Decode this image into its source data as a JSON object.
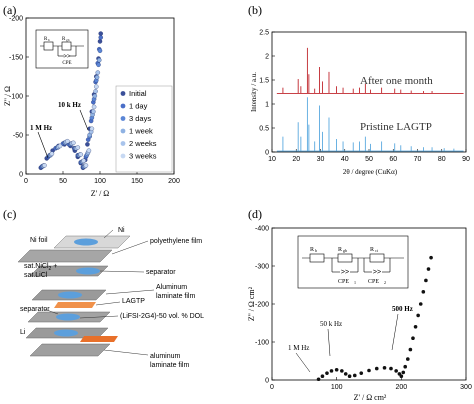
{
  "panel_labels": {
    "a": "(a)",
    "b": "(b)",
    "c": "(c)",
    "d": "(d)"
  },
  "chart_data": [
    {
      "panel": "a",
      "type": "scatter",
      "xlabel": "Z' / Ω",
      "ylabel": "Z'' / Ω",
      "xlim": [
        0,
        200
      ],
      "ylim": [
        -200,
        0
      ],
      "xticks": [
        "0",
        "50",
        "100",
        "150",
        "200"
      ],
      "yticks": [
        "-200",
        "-150",
        "-100",
        "-50",
        "0"
      ],
      "annotations": [
        "1 M Hz",
        "10 k Hz"
      ],
      "inset_circuit": {
        "labels": [
          "R",
          "b",
          "R",
          "gb",
          "CPE"
        ]
      },
      "legend_placement": "bottom-right",
      "colors": [
        "#3a4f99",
        "#4a6fc8",
        "#5b86d6",
        "#8fb2e3",
        "#a8c4ec",
        "#c7d9f3"
      ],
      "series": [
        {
          "name": "Initial",
          "points": [
            [
              20,
              -8
            ],
            [
              28,
              -20
            ],
            [
              36,
              -30
            ],
            [
              44,
              -36
            ],
            [
              52,
              -38
            ],
            [
              60,
              -36
            ],
            [
              66,
              -30
            ],
            [
              70,
              -22
            ],
            [
              74,
              -14
            ],
            [
              77,
              -8
            ],
            [
              80,
              -18
            ],
            [
              83,
              -38
            ],
            [
              86,
              -58
            ],
            [
              89,
              -80
            ],
            [
              92,
              -102
            ],
            [
              95,
              -125
            ],
            [
              98,
              -148
            ],
            [
              100,
              -170
            ],
            [
              101,
              -180
            ]
          ]
        },
        {
          "name": "1 day",
          "points": [
            [
              21,
              -9
            ],
            [
              30,
              -22
            ],
            [
              40,
              -33
            ],
            [
              50,
              -39
            ],
            [
              58,
              -38
            ],
            [
              65,
              -33
            ],
            [
              70,
              -24
            ],
            [
              74,
              -15
            ],
            [
              77,
              -9
            ],
            [
              81,
              -22
            ],
            [
              84,
              -44
            ],
            [
              88,
              -68
            ],
            [
              91,
              -92
            ],
            [
              94,
              -118
            ],
            [
              97,
              -142
            ],
            [
              99,
              -160
            ],
            [
              101,
              -175
            ]
          ]
        },
        {
          "name": "3 days",
          "points": [
            [
              22,
              -10
            ],
            [
              32,
              -24
            ],
            [
              42,
              -34
            ],
            [
              52,
              -40
            ],
            [
              60,
              -38
            ],
            [
              66,
              -33
            ],
            [
              71,
              -24
            ],
            [
              75,
              -15
            ],
            [
              78,
              -9
            ],
            [
              82,
              -24
            ],
            [
              86,
              -48
            ],
            [
              89,
              -72
            ],
            [
              92,
              -96
            ],
            [
              95,
              -120
            ],
            [
              98,
              -140
            ],
            [
              100,
              -158
            ]
          ]
        },
        {
          "name": "1 week",
          "points": [
            [
              23,
              -10
            ],
            [
              33,
              -24
            ],
            [
              43,
              -34
            ],
            [
              53,
              -40
            ],
            [
              61,
              -39
            ],
            [
              67,
              -33
            ],
            [
              72,
              -24
            ],
            [
              76,
              -16
            ],
            [
              79,
              -10
            ],
            [
              83,
              -26
            ],
            [
              86,
              -50
            ],
            [
              90,
              -76
            ],
            [
              93,
              -100
            ],
            [
              96,
              -124
            ],
            [
              99,
              -146
            ]
          ]
        },
        {
          "name": "2 weeks",
          "points": [
            [
              24,
              -11
            ],
            [
              34,
              -25
            ],
            [
              44,
              -35
            ],
            [
              54,
              -41
            ],
            [
              62,
              -39
            ],
            [
              68,
              -33
            ],
            [
              73,
              -25
            ],
            [
              77,
              -16
            ],
            [
              80,
              -10
            ],
            [
              84,
              -28
            ],
            [
              88,
              -54
            ],
            [
              91,
              -80
            ],
            [
              94,
              -106
            ],
            [
              97,
              -130
            ]
          ]
        },
        {
          "name": "3 weeks",
          "points": [
            [
              25,
              -11
            ],
            [
              35,
              -26
            ],
            [
              46,
              -36
            ],
            [
              56,
              -42
            ],
            [
              64,
              -40
            ],
            [
              70,
              -34
            ],
            [
              74,
              -25
            ],
            [
              78,
              -17
            ],
            [
              81,
              -11
            ],
            [
              85,
              -30
            ],
            [
              89,
              -58
            ],
            [
              92,
              -86
            ],
            [
              95,
              -112
            ]
          ]
        }
      ]
    },
    {
      "panel": "b",
      "type": "line",
      "xlabel": "2θ / degree (CuKα)",
      "ylabel": "Intensity / a.u.",
      "xlim": [
        10,
        90
      ],
      "ylim": [
        0,
        2.5
      ],
      "xticks": [
        "10",
        "20",
        "30",
        "40",
        "50",
        "60",
        "70",
        "80",
        "90"
      ],
      "yticks": [
        "0",
        "0.5",
        "1",
        "1.5",
        "2",
        "2.5"
      ],
      "series": [
        {
          "name": "After one month",
          "color": "#c0262d",
          "baseline": 1.22,
          "peaks": [
            [
              14.5,
              0.12
            ],
            [
              20.8,
              0.3
            ],
            [
              21.9,
              0.15
            ],
            [
              24.6,
              0.95
            ],
            [
              25.2,
              0.4
            ],
            [
              27.6,
              0.1
            ],
            [
              29.6,
              0.55
            ],
            [
              30.8,
              0.25
            ],
            [
              33.5,
              0.45
            ],
            [
              36.6,
              0.15
            ],
            [
              39.3,
              0.12
            ],
            [
              43.5,
              0.1
            ],
            [
              46.1,
              0.12
            ],
            [
              48.5,
              0.2
            ],
            [
              50.6,
              0.08
            ],
            [
              55.2,
              0.12
            ],
            [
              60.6,
              0.1
            ],
            [
              63.1,
              0.08
            ],
            [
              67.4,
              0.06
            ],
            [
              72.5,
              0.05
            ],
            [
              76.0,
              0.05
            ]
          ]
        },
        {
          "name": "Pristine LAGTP",
          "color": "#5aa9df",
          "baseline": 0.02,
          "peaks": [
            [
              14.5,
              0.3
            ],
            [
              20.8,
              0.6
            ],
            [
              21.9,
              0.3
            ],
            [
              24.6,
              1.12
            ],
            [
              25.2,
              0.55
            ],
            [
              27.6,
              0.2
            ],
            [
              29.6,
              0.95
            ],
            [
              30.8,
              0.4
            ],
            [
              33.5,
              0.7
            ],
            [
              36.6,
              0.25
            ],
            [
              39.3,
              0.2
            ],
            [
              43.5,
              0.18
            ],
            [
              46.1,
              0.2
            ],
            [
              48.5,
              0.3
            ],
            [
              50.6,
              0.15
            ],
            [
              55.2,
              0.2
            ],
            [
              60.6,
              0.16
            ],
            [
              63.1,
              0.12
            ],
            [
              67.4,
              0.1
            ],
            [
              72.5,
              0.08
            ],
            [
              76.0,
              0.08
            ],
            [
              81.0,
              0.06
            ],
            [
              85.0,
              0.05
            ]
          ]
        }
      ]
    },
    {
      "panel": "d",
      "type": "scatter",
      "xlabel": "Z' / Ω cm²",
      "ylabel": "Z'' / Ω cm²",
      "xlim": [
        0,
        300
      ],
      "ylim": [
        -400,
        0
      ],
      "xticks": [
        "0",
        "100",
        "200",
        "300"
      ],
      "yticks": [
        "-400",
        "-300",
        "-200",
        "-100",
        "0"
      ],
      "annotations": [
        "1 M Hz",
        "50 k Hz",
        "500 Hz"
      ],
      "inset_circuit": {
        "labels": [
          "R",
          "b",
          "R",
          "gb",
          "R",
          "ct",
          "CPE",
          "1",
          "CPE",
          "2"
        ]
      },
      "series": [
        {
          "name": "",
          "color": "#111111",
          "points": [
            [
              72,
              -2
            ],
            [
              78,
              -10
            ],
            [
              85,
              -18
            ],
            [
              92,
              -24
            ],
            [
              100,
              -27
            ],
            [
              108,
              -24
            ],
            [
              114,
              -16
            ],
            [
              120,
              -10
            ],
            [
              128,
              -12
            ],
            [
              138,
              -18
            ],
            [
              150,
              -25
            ],
            [
              162,
              -30
            ],
            [
              174,
              -32
            ],
            [
              184,
              -30
            ],
            [
              192,
              -24
            ],
            [
              197,
              -16
            ],
            [
              200,
              -10
            ],
            [
              203,
              -20
            ],
            [
              206,
              -35
            ],
            [
              210,
              -55
            ],
            [
              214,
              -80
            ],
            [
              218,
              -110
            ],
            [
              222,
              -140
            ],
            [
              226,
              -170
            ],
            [
              230,
              -200
            ],
            [
              234,
              -232
            ],
            [
              238,
              -262
            ],
            [
              242,
              -292
            ],
            [
              246,
              -322
            ]
          ]
        }
      ]
    }
  ],
  "schematic": {
    "labels": {
      "ni_foil": "Ni foil",
      "ni": "Ni",
      "polyethylene": "polyethylene film",
      "sat1": "sat.NiCl",
      "sat1_sub": "2",
      "sat1_plus": " +",
      "sat2": "sat.LiCl",
      "separator1": "separator",
      "aluminum1": "Aluminum",
      "aluminum1b": "laminate film",
      "lagtp": "LAGTP",
      "separator2": "separator",
      "lifsi": "(LiFSI-2G4)-50 vol. % DOL",
      "li": "Li",
      "aluminum2": "aluminum",
      "aluminum2b": "laminate film"
    },
    "colors": {
      "plate": "#9a9a9a",
      "blue": "#5c9fdc",
      "orange": "#f0914a",
      "line": "#333333"
    }
  }
}
